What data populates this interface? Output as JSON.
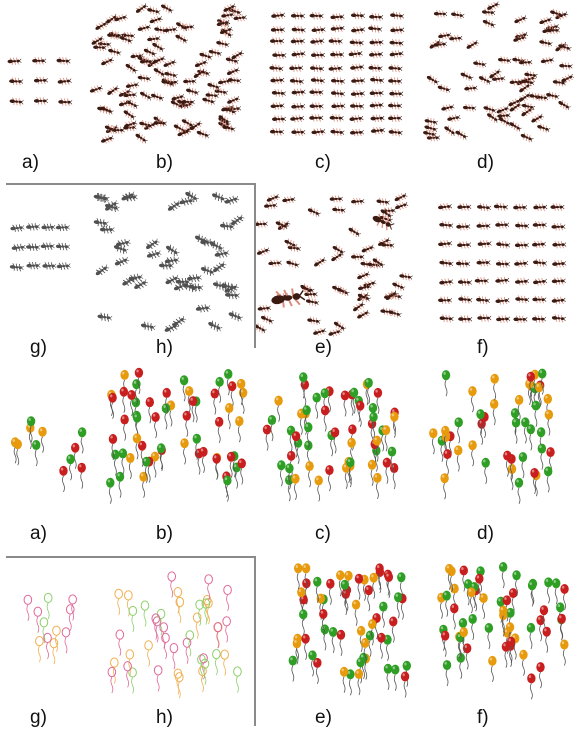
{
  "panel_labels": [
    "a)",
    "b)",
    "c)",
    "d)",
    "g)",
    "h)",
    "e)",
    "f)",
    "a)",
    "b)",
    "c)",
    "d)",
    "g)",
    "h)",
    "e)",
    "f)"
  ],
  "colors": {
    "ant_body": "#3b1a12",
    "ant_leg": "#d98a7a",
    "ant_gray": "#505050",
    "balloon_red": "#c81e1e",
    "balloon_orange": "#e69a0c",
    "balloon_green": "#2e9e24",
    "outline_pink": "#e0689a",
    "outline_green": "#8ccf6a",
    "outline_orange": "#f0b050",
    "divider": "#8a8a8a"
  },
  "panels": [
    {
      "id": "ants-a",
      "kind": "ant",
      "style": "photo",
      "layout": "grid",
      "cols": 3,
      "rows": 3
    },
    {
      "id": "ants-b",
      "kind": "ant",
      "style": "photo",
      "layout": "scatter",
      "count": 105
    },
    {
      "id": "ants-c",
      "kind": "ant",
      "style": "photo",
      "layout": "grid",
      "cols": 7,
      "rows": 10
    },
    {
      "id": "ants-d",
      "kind": "ant",
      "style": "photo",
      "layout": "scatter",
      "count": 70
    },
    {
      "id": "ants-g",
      "kind": "ant",
      "style": "gray",
      "layout": "grid",
      "cols": 4,
      "rows": 3
    },
    {
      "id": "ants-h",
      "kind": "ant",
      "style": "gray",
      "layout": "scatter",
      "count": 50
    },
    {
      "id": "ants-e",
      "kind": "ant",
      "style": "photo",
      "layout": "scatter",
      "count": 60,
      "has_large": true
    },
    {
      "id": "ants-f",
      "kind": "ant",
      "style": "photo",
      "layout": "grid",
      "cols": 7,
      "rows": 7
    },
    {
      "id": "balloons-a",
      "kind": "balloon",
      "style": "filled",
      "count": 11
    },
    {
      "id": "balloons-b",
      "kind": "balloon",
      "style": "filled",
      "count": 56
    },
    {
      "id": "balloons-c",
      "kind": "balloon",
      "style": "filled",
      "count": 56
    },
    {
      "id": "balloons-d",
      "kind": "balloon",
      "style": "filled",
      "count": 45
    },
    {
      "id": "balloons-g",
      "kind": "balloon",
      "style": "outline",
      "count": 11
    },
    {
      "id": "balloons-h",
      "kind": "balloon",
      "style": "outline",
      "count": 42
    },
    {
      "id": "balloons-e",
      "kind": "balloon",
      "style": "filled",
      "count": 56
    },
    {
      "id": "balloons-f",
      "kind": "balloon",
      "style": "filled",
      "count": 56
    }
  ]
}
